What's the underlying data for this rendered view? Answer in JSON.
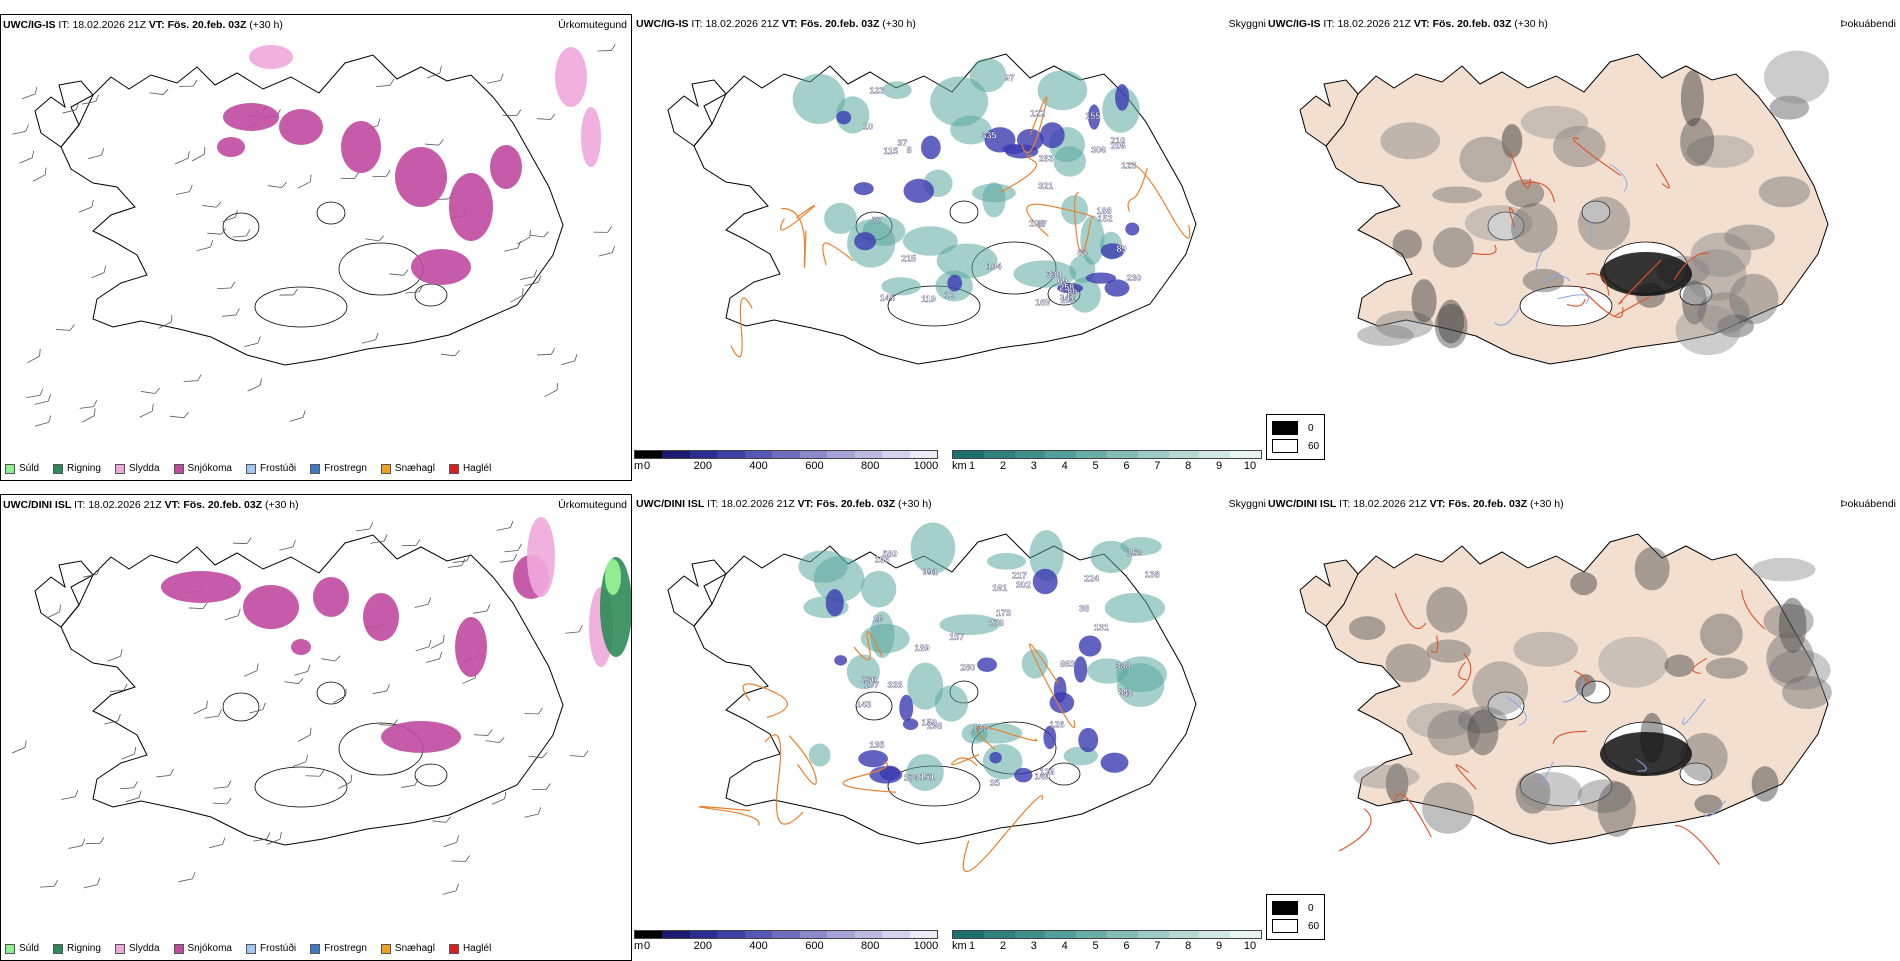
{
  "rows": [
    {
      "model": "UWC/IG-IS",
      "it_label": "IT:",
      "it_value": "18.02.2026 21Z",
      "vt_label": "VT:",
      "vt_value": "Fös. 20.feb. 03Z",
      "lead": "(+30 h)"
    },
    {
      "model": "UWC/DINI ISL",
      "it_label": "IT:",
      "it_value": "18.02.2026 21Z",
      "vt_label": "VT:",
      "vt_value": "Fös. 20.feb. 03Z",
      "lead": "(+30 h)"
    }
  ],
  "params": {
    "precip_type": "Úrkomutegund",
    "visibility": "Skyggni",
    "fog": "Þokuábendi"
  },
  "precip_legend": [
    {
      "label": "Súld",
      "color": "#90ee90"
    },
    {
      "label": "Rigning",
      "color": "#2e8b57"
    },
    {
      "label": "Slydda",
      "color": "#f0a8dc"
    },
    {
      "label": "Snjókoma",
      "color": "#c04aa0"
    },
    {
      "label": "Frostúði",
      "color": "#9ec8f0"
    },
    {
      "label": "Frostregn",
      "color": "#3a78c8"
    },
    {
      "label": "Snæhagl",
      "color": "#f0a020"
    },
    {
      "label": "Haglél",
      "color": "#e02020"
    }
  ],
  "ceiling_scale": {
    "unit": "m",
    "ticks": [
      "0",
      "200",
      "400",
      "600",
      "800",
      "1000"
    ],
    "colors": [
      "#000000",
      "#1a1a6e",
      "#2c2c94",
      "#3f3fa8",
      "#5656b4",
      "#6f6fc0",
      "#8a8acb",
      "#a4a4d6",
      "#bcbce2",
      "#d4d4ec",
      "#ececf6"
    ]
  },
  "vis_scale": {
    "unit": "km",
    "ticks": [
      "1",
      "2",
      "3",
      "4",
      "5",
      "6",
      "7",
      "8",
      "9",
      "10"
    ],
    "colors": [
      "#1f6f6c",
      "#2e807c",
      "#3f908b",
      "#52a099",
      "#69afa8",
      "#82bdb6",
      "#9dcbc5",
      "#b7d9d4",
      "#d1e7e3",
      "#eaf4f2"
    ]
  },
  "fog_scale": [
    {
      "label": "0",
      "color": "#000000"
    },
    {
      "label": "60",
      "color": "#ffffff"
    }
  ],
  "ceiling_labels_top": [
    "169",
    "258",
    "283",
    "123",
    "12",
    "89",
    "97",
    "104",
    "141",
    "155",
    "8",
    "89",
    "10",
    "115",
    "67",
    "321",
    "306",
    "119",
    "210",
    "108",
    "123",
    "145",
    "152",
    "335",
    "330",
    "188",
    "69",
    "206",
    "230",
    "37",
    "77",
    "104",
    "215",
    "122",
    "84"
  ],
  "ceiling_labels_bottom": [
    "580",
    "863",
    "991",
    "173",
    "236",
    "35",
    "26",
    "280",
    "333",
    "189",
    "143",
    "302",
    "151",
    "157",
    "166",
    "278",
    "126",
    "107",
    "150",
    "298",
    "224",
    "86",
    "217",
    "149",
    "38",
    "131",
    "388",
    "374",
    "130",
    "153",
    "161",
    "126",
    "135",
    "138",
    "40"
  ],
  "colors": {
    "snow": "#c04aa0",
    "sleet": "#f0a8dc",
    "rain": "#2e8b57",
    "drizzle": "#90ee90",
    "roads": "#e8812e",
    "coast": "#000000",
    "land_fog": "#f2dfcf",
    "fog_roads": "#e2502a",
    "rivers": "#8aa6e8"
  }
}
